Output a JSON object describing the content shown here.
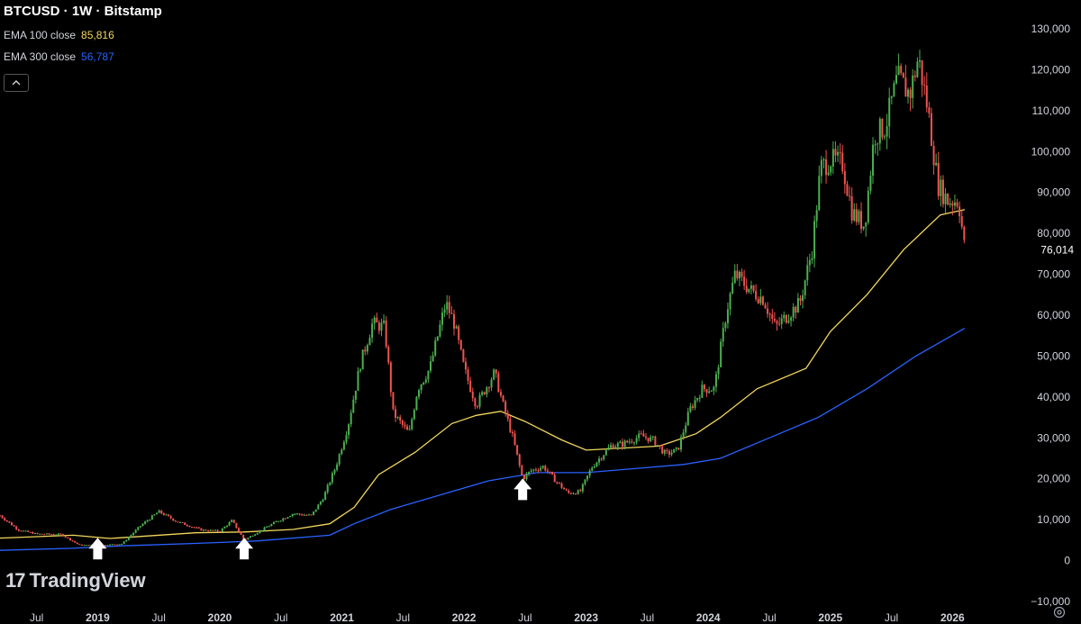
{
  "header": {
    "title": "BTCUSD · 1W · Bitstamp",
    "ema100_label": "EMA 100 close",
    "ema100_value": "85,816",
    "ema300_label": "EMA 300 close",
    "ema300_value": "56,787",
    "collapse_icon": "chevron-up-icon"
  },
  "branding": {
    "logo_mark": "17",
    "logo_text": "TradingView"
  },
  "colors": {
    "background": "#000000",
    "up": "#4caf50",
    "down": "#ef5350",
    "ema100": "#f2d75c",
    "ema300": "#2962ff",
    "axis_text": "#d1d4dc",
    "last_price_label": "#ffffff",
    "arrow": "#ffffff"
  },
  "chart_data": {
    "type": "candlestick",
    "title": "BTCUSD · 1W · Bitstamp",
    "ylim": [
      -10000,
      130000
    ],
    "y_ticks": [
      130000,
      120000,
      110000,
      100000,
      90000,
      80000,
      70000,
      60000,
      50000,
      40000,
      30000,
      20000,
      10000,
      0,
      -10000
    ],
    "y_tick_labels": [
      "130,000",
      "120,000",
      "110,000",
      "100,000",
      "90,000",
      "80,000",
      "70,000",
      "60,000",
      "50,000",
      "40,000",
      "30,000",
      "20,000",
      "10,000",
      "0",
      "−10,000"
    ],
    "last_price": 76014,
    "last_price_label": "76,014",
    "xlim": [
      2018.2,
      2026.3
    ],
    "x_ticks": [
      {
        "t": 2018.5,
        "label": "Jul"
      },
      {
        "t": 2019.0,
        "label": "2019"
      },
      {
        "t": 2019.5,
        "label": "Jul"
      },
      {
        "t": 2020.0,
        "label": "2020"
      },
      {
        "t": 2020.5,
        "label": "Jul"
      },
      {
        "t": 2021.0,
        "label": "2021"
      },
      {
        "t": 2021.5,
        "label": "Jul"
      },
      {
        "t": 2022.0,
        "label": "2022"
      },
      {
        "t": 2022.5,
        "label": "Jul"
      },
      {
        "t": 2023.0,
        "label": "2023"
      },
      {
        "t": 2023.5,
        "label": "Jul"
      },
      {
        "t": 2024.0,
        "label": "2024"
      },
      {
        "t": 2024.5,
        "label": "Jul"
      },
      {
        "t": 2025.0,
        "label": "2025"
      },
      {
        "t": 2025.5,
        "label": "Jul"
      },
      {
        "t": 2026.0,
        "label": "2026"
      }
    ],
    "price_anchors": [
      [
        2018.2,
        11000
      ],
      [
        2018.35,
        7500
      ],
      [
        2018.5,
        6500
      ],
      [
        2018.7,
        6400
      ],
      [
        2018.85,
        3800
      ],
      [
        2019.0,
        3700
      ],
      [
        2019.2,
        4100
      ],
      [
        2019.35,
        8500
      ],
      [
        2019.5,
        12000
      ],
      [
        2019.65,
        9500
      ],
      [
        2019.85,
        7500
      ],
      [
        2020.0,
        7200
      ],
      [
        2020.1,
        9800
      ],
      [
        2020.2,
        5000
      ],
      [
        2020.3,
        6800
      ],
      [
        2020.45,
        9300
      ],
      [
        2020.6,
        11500
      ],
      [
        2020.75,
        11000
      ],
      [
        2020.85,
        15500
      ],
      [
        2020.95,
        23000
      ],
      [
        2021.05,
        33000
      ],
      [
        2021.15,
        48000
      ],
      [
        2021.25,
        58000
      ],
      [
        2021.35,
        57000
      ],
      [
        2021.42,
        36000
      ],
      [
        2021.55,
        31000
      ],
      [
        2021.62,
        42000
      ],
      [
        2021.72,
        47000
      ],
      [
        2021.85,
        63000
      ],
      [
        2021.92,
        58000
      ],
      [
        2022.0,
        47000
      ],
      [
        2022.1,
        38000
      ],
      [
        2022.25,
        46000
      ],
      [
        2022.32,
        38000
      ],
      [
        2022.4,
        30000
      ],
      [
        2022.48,
        20000
      ],
      [
        2022.55,
        22000
      ],
      [
        2022.65,
        23000
      ],
      [
        2022.75,
        19500
      ],
      [
        2022.85,
        16500
      ],
      [
        2022.95,
        16800
      ],
      [
        2023.05,
        23000
      ],
      [
        2023.2,
        28000
      ],
      [
        2023.3,
        28500
      ],
      [
        2023.45,
        30500
      ],
      [
        2023.55,
        29500
      ],
      [
        2023.65,
        26000
      ],
      [
        2023.75,
        27000
      ],
      [
        2023.85,
        37000
      ],
      [
        2023.95,
        42000
      ],
      [
        2024.05,
        42000
      ],
      [
        2024.15,
        61000
      ],
      [
        2024.22,
        70000
      ],
      [
        2024.35,
        66000
      ],
      [
        2024.45,
        64000
      ],
      [
        2024.55,
        57000
      ],
      [
        2024.65,
        60000
      ],
      [
        2024.75,
        63000
      ],
      [
        2024.85,
        76000
      ],
      [
        2024.92,
        96000
      ],
      [
        2025.0,
        98000
      ],
      [
        2025.1,
        97000
      ],
      [
        2025.18,
        85000
      ],
      [
        2025.28,
        82000
      ],
      [
        2025.36,
        104000
      ],
      [
        2025.45,
        106000
      ],
      [
        2025.55,
        118000
      ],
      [
        2025.65,
        114000
      ],
      [
        2025.72,
        123000
      ],
      [
        2025.8,
        110000
      ],
      [
        2025.88,
        92000
      ],
      [
        2025.96,
        88000
      ],
      [
        2026.05,
        88000
      ],
      [
        2026.1,
        76014
      ]
    ],
    "ema100_curve": [
      [
        2018.2,
        5500
      ],
      [
        2018.8,
        6200
      ],
      [
        2019.1,
        5400
      ],
      [
        2019.4,
        6000
      ],
      [
        2019.8,
        6800
      ],
      [
        2020.2,
        7000
      ],
      [
        2020.6,
        7600
      ],
      [
        2020.9,
        9000
      ],
      [
        2021.1,
        13000
      ],
      [
        2021.3,
        21000
      ],
      [
        2021.6,
        26500
      ],
      [
        2021.9,
        33500
      ],
      [
        2022.1,
        35500
      ],
      [
        2022.3,
        36500
      ],
      [
        2022.5,
        34000
      ],
      [
        2022.8,
        29500
      ],
      [
        2023.0,
        27000
      ],
      [
        2023.3,
        27500
      ],
      [
        2023.6,
        28000
      ],
      [
        2023.9,
        31000
      ],
      [
        2024.1,
        35000
      ],
      [
        2024.4,
        42000
      ],
      [
        2024.8,
        47000
      ],
      [
        2025.0,
        56000
      ],
      [
        2025.3,
        65000
      ],
      [
        2025.6,
        76000
      ],
      [
        2025.9,
        84500
      ],
      [
        2026.1,
        85816
      ]
    ],
    "ema300_curve": [
      [
        2018.2,
        2500
      ],
      [
        2018.8,
        3000
      ],
      [
        2019.2,
        3600
      ],
      [
        2019.8,
        4200
      ],
      [
        2020.3,
        4800
      ],
      [
        2020.9,
        6200
      ],
      [
        2021.1,
        9000
      ],
      [
        2021.4,
        12500
      ],
      [
        2021.8,
        16000
      ],
      [
        2022.2,
        19500
      ],
      [
        2022.6,
        21500
      ],
      [
        2023.0,
        21500
      ],
      [
        2023.4,
        22500
      ],
      [
        2023.8,
        23500
      ],
      [
        2024.1,
        25000
      ],
      [
        2024.5,
        30000
      ],
      [
        2024.9,
        35000
      ],
      [
        2025.3,
        42000
      ],
      [
        2025.7,
        50000
      ],
      [
        2026.1,
        56787
      ]
    ],
    "arrows": [
      {
        "t": 2019.0,
        "price": 2500
      },
      {
        "t": 2020.2,
        "price": 2500
      },
      {
        "t": 2022.48,
        "price": 17000
      }
    ]
  }
}
